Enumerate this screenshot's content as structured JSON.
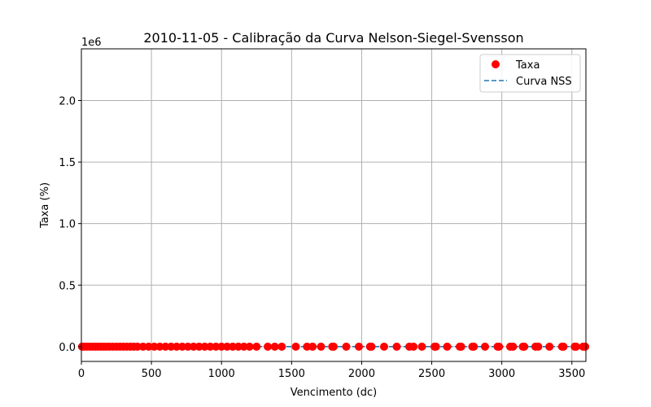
{
  "chart_data": {
    "type": "scatter",
    "title": "2010-11-05 - Calibração da Curva Nelson-Siegel-Svensson",
    "xlabel": "Vencimento (dc)",
    "ylabel": "Taxa (%)",
    "y_offset_label": "1e6",
    "xlim": [
      0,
      3600
    ],
    "ylim": [
      -120000,
      2420000
    ],
    "x_ticks": [
      0,
      500,
      1000,
      1500,
      2000,
      2500,
      3000,
      3500
    ],
    "x_tick_labels": [
      "0",
      "500",
      "1000",
      "1500",
      "2000",
      "2500",
      "3000",
      "3500"
    ],
    "y_ticks": [
      0,
      500000,
      1000000,
      1500000,
      2000000
    ],
    "y_tick_labels": [
      "0.0",
      "0.5",
      "1.0",
      "1.5",
      "2.0"
    ],
    "grid": true,
    "legend_position": "top-right",
    "series": [
      {
        "name": "Taxa",
        "kind": "scatter",
        "color": "#ff0000",
        "x": [
          5,
          20,
          40,
          60,
          80,
          100,
          120,
          140,
          160,
          180,
          200,
          225,
          250,
          275,
          300,
          325,
          350,
          375,
          400,
          440,
          480,
          520,
          560,
          600,
          640,
          680,
          720,
          760,
          800,
          840,
          880,
          920,
          960,
          1000,
          1040,
          1080,
          1120,
          1160,
          1200,
          1250,
          1330,
          1380,
          1430,
          1530,
          1610,
          1650,
          1710,
          1790,
          1800,
          1890,
          1980,
          2060,
          2070,
          2160,
          2250,
          2340,
          2370,
          2430,
          2520,
          2530,
          2610,
          2700,
          2710,
          2790,
          2800,
          2880,
          2970,
          2980,
          3060,
          3080,
          3150,
          3160,
          3240,
          3260,
          3340,
          3430,
          3440,
          3520,
          3530,
          3580,
          3595
        ],
        "y": [
          11,
          11,
          11,
          11,
          11,
          11,
          11,
          11,
          11,
          11,
          11,
          11,
          11,
          11,
          11,
          11,
          11,
          11,
          11,
          11,
          11,
          11,
          11,
          11,
          11,
          11,
          11,
          11,
          11,
          11,
          11,
          11,
          11,
          11,
          11,
          11,
          11,
          11,
          11,
          11,
          11,
          11,
          11,
          11,
          11,
          11,
          11,
          11,
          11,
          11,
          11,
          11,
          11,
          11,
          11,
          11,
          11,
          11,
          11,
          11,
          11,
          11,
          11,
          11,
          11,
          11,
          11,
          11,
          11,
          11,
          11,
          11,
          11,
          11,
          11,
          11,
          11,
          11,
          11,
          11,
          11
        ]
      },
      {
        "name": "Curva NSS",
        "kind": "line",
        "style": "dashed",
        "color": "#1f77b4",
        "x": [
          0,
          600,
          1200,
          1800,
          2400,
          3000,
          3600
        ],
        "y": [
          11,
          11,
          11,
          11,
          11,
          11,
          11
        ]
      }
    ]
  }
}
